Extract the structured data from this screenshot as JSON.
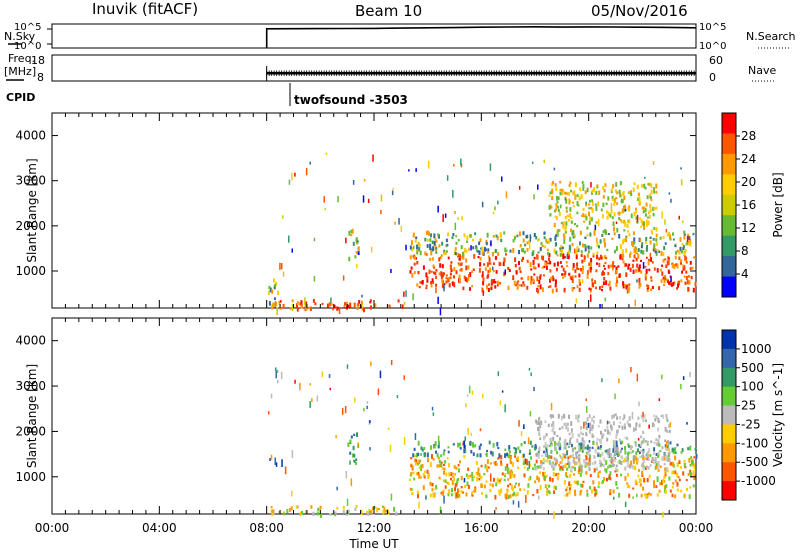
{
  "header": {
    "station": "Inuvik (fitACF)",
    "beam": "Beam 10",
    "date": "05/Nov/2016"
  },
  "top_labels": {
    "nsky": "N.Sky",
    "nsky_top": "10^5",
    "nsky_bottom": "10^0",
    "nsearch": "N.Search",
    "nsearch_top": "10^5",
    "nsearch_bottom": "10^0",
    "freq_line1": "Freq.",
    "freq_line2": "[MHz]",
    "freq_top": "18",
    "freq_bottom": "8",
    "nave": "Nave",
    "nave_top": "60",
    "nave_bottom": "0",
    "cpid": "CPID",
    "program": "twofsound -3503"
  },
  "chart_data": [
    {
      "type": "line",
      "title": "",
      "ylabel_left": "N.Sky",
      "ylabel_right": "N.Search",
      "scale": "log",
      "ylim": [
        1,
        100000
      ],
      "x": [
        8.0,
        8.0,
        9,
        10,
        11,
        12,
        13,
        14,
        15,
        16,
        17,
        18,
        19,
        20,
        21,
        22,
        23,
        24
      ],
      "values": [
        1,
        10000,
        10500,
        11000,
        11500,
        12000,
        14000,
        16000,
        18000,
        22000,
        24000,
        26000,
        23000,
        25000,
        24000,
        22000,
        20000,
        16000
      ]
    },
    {
      "type": "bar",
      "title": "",
      "ylabel_left": "Freq. [MHz]",
      "ylabel_right": "Nave",
      "ylim_left": [
        8,
        18
      ],
      "ylim_right": [
        0,
        60
      ],
      "x_start": 8.0,
      "x_end": 24.0,
      "freq_values": [
        10.5,
        11.5
      ],
      "nave_values": [
        20,
        33
      ]
    },
    {
      "type": "heatmap",
      "title": "",
      "xlabel": "",
      "ylabel": "Slant Range [km]",
      "ylim": [
        180,
        4500
      ],
      "yticks": [
        1000,
        2000,
        3000,
        4000
      ],
      "colorbar_label": "Power [dB]",
      "colorbar_ticks": [
        "28",
        "24",
        "20",
        "16",
        "12",
        "8",
        "4"
      ],
      "colorbar_colors": [
        "#ff0000",
        "#ff5500",
        "#ff9900",
        "#ffcc00",
        "#cccc00",
        "#66bb33",
        "#339966",
        "#336699",
        "#0000ff"
      ],
      "bands": [
        {
          "x0": 8.0,
          "x1": 8.4,
          "y0": 180,
          "y1": 900,
          "level": "mid"
        },
        {
          "x0": 8.0,
          "x1": 13.0,
          "y0": 180,
          "y1": 380,
          "level": "high"
        },
        {
          "x0": 11.0,
          "x1": 11.4,
          "y0": 1300,
          "y1": 2000,
          "level": "mid"
        },
        {
          "x0": 13.3,
          "x1": 24.0,
          "y0": 600,
          "y1": 1400,
          "level": "high"
        },
        {
          "x0": 13.3,
          "x1": 24.0,
          "y0": 1400,
          "y1": 1900,
          "level": "mid"
        },
        {
          "x0": 18.5,
          "x1": 22.5,
          "y0": 1900,
          "y1": 3000,
          "level": "low"
        }
      ]
    },
    {
      "type": "heatmap",
      "title": "",
      "xlabel": "Time UT",
      "ylabel": "Slant Range [km]",
      "ylim": [
        180,
        4500
      ],
      "yticks": [
        1000,
        2000,
        3000,
        4000
      ],
      "xticks": [
        "00:00",
        "04:00",
        "08:00",
        "12:00",
        "16:00",
        "20:00",
        "00:00"
      ],
      "colorbar_label": "Velocity [m s^-1]",
      "colorbar_ticks": [
        "1000",
        "500",
        "100",
        "25",
        "-25",
        "-100",
        "-500",
        "-1000"
      ],
      "colorbar_colors": [
        "#0033aa",
        "#3366aa",
        "#339966",
        "#66cc33",
        "#bbbbbb",
        "#ffcc00",
        "#ff9900",
        "#ff5500",
        "#ff0000"
      ],
      "bands": [
        {
          "x0": 8.0,
          "x1": 13.0,
          "y0": 180,
          "y1": 380,
          "level": "mixed"
        },
        {
          "x0": 11.0,
          "x1": 11.4,
          "y0": 1300,
          "y1": 2000,
          "level": "pos"
        },
        {
          "x0": 13.3,
          "x1": 24.0,
          "y0": 600,
          "y1": 1500,
          "level": "neg"
        },
        {
          "x0": 13.3,
          "x1": 24.0,
          "y0": 1500,
          "y1": 1800,
          "level": "pos"
        },
        {
          "x0": 18.0,
          "x1": 23.0,
          "y0": 1200,
          "y1": 2400,
          "level": "zero"
        }
      ]
    }
  ]
}
